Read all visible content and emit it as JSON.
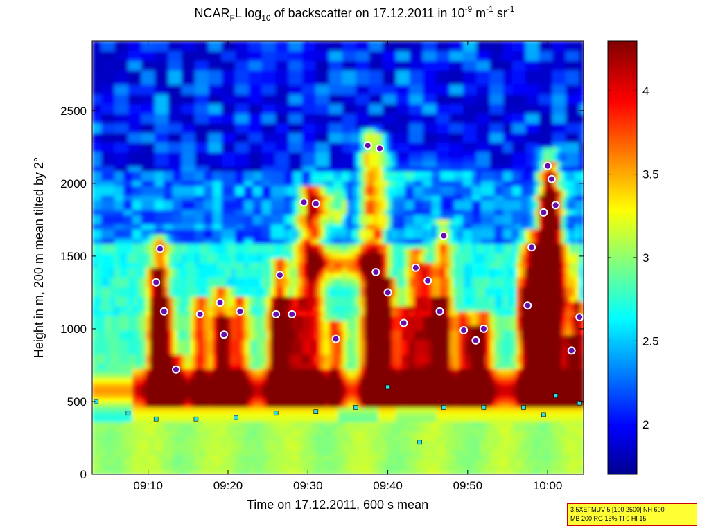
{
  "chart_data": {
    "type": "heatmap",
    "title": {
      "prefix": "NCAR",
      "sub1": "F",
      "mid1": "L log",
      "sub2": "10",
      "mid2": " of backscatter on 17.12.2011 in 10",
      "sup1": "-9",
      "mid3": " m",
      "sup2": "-1",
      "mid4": " sr",
      "sup3": "-1"
    },
    "xlabel": "Time on 17.12.2011, 600 s mean",
    "ylabel": "Height in m, 200 m mean tilted by 2°",
    "x_ticks": [
      "09:10",
      "09:20",
      "09:30",
      "09:40",
      "09:50",
      "10:00"
    ],
    "x_tick_minutes": [
      550,
      560,
      570,
      580,
      590,
      600
    ],
    "xlim_minutes": [
      543,
      604.5
    ],
    "y_ticks": [
      "0",
      "500",
      "1000",
      "1500",
      "2000",
      "2500"
    ],
    "y_tick_values": [
      0,
      500,
      1000,
      1500,
      2000,
      2500
    ],
    "ylim": [
      0,
      2980
    ],
    "colorbar": {
      "range": [
        1.7,
        4.3
      ],
      "ticks": [
        "2",
        "2.5",
        "3",
        "3.5",
        "4"
      ],
      "tick_values": [
        2,
        2.5,
        3,
        3.5,
        4
      ],
      "colormap": "jet"
    },
    "cloud_base_series": [
      {
        "t": 551.5,
        "h": 1550
      },
      {
        "t": 551,
        "h": 1320
      },
      {
        "t": 552,
        "h": 1120
      },
      {
        "t": 553.5,
        "h": 720
      },
      {
        "t": 556.5,
        "h": 1100
      },
      {
        "t": 559,
        "h": 1180
      },
      {
        "t": 559.5,
        "h": 960
      },
      {
        "t": 561.5,
        "h": 1120
      },
      {
        "t": 566,
        "h": 1100
      },
      {
        "t": 566.5,
        "h": 1370
      },
      {
        "t": 568,
        "h": 1100
      },
      {
        "t": 569.5,
        "h": 1870
      },
      {
        "t": 571,
        "h": 1860
      },
      {
        "t": 573.5,
        "h": 930
      },
      {
        "t": 577.5,
        "h": 2260
      },
      {
        "t": 579,
        "h": 2240
      },
      {
        "t": 578.5,
        "h": 1390
      },
      {
        "t": 580,
        "h": 1250
      },
      {
        "t": 582,
        "h": 1040
      },
      {
        "t": 583.5,
        "h": 1420
      },
      {
        "t": 585,
        "h": 1330
      },
      {
        "t": 586.5,
        "h": 1120
      },
      {
        "t": 587,
        "h": 1640
      },
      {
        "t": 589.5,
        "h": 990
      },
      {
        "t": 591,
        "h": 920
      },
      {
        "t": 592,
        "h": 1000
      },
      {
        "t": 597.5,
        "h": 1160
      },
      {
        "t": 598,
        "h": 1560
      },
      {
        "t": 599.5,
        "h": 1800
      },
      {
        "t": 600,
        "h": 2120
      },
      {
        "t": 600.5,
        "h": 2030
      },
      {
        "t": 601,
        "h": 1850
      },
      {
        "t": 603,
        "h": 850
      },
      {
        "t": 604,
        "h": 1080
      }
    ],
    "aerosol_layer_series": [
      {
        "t": 543.5,
        "h": 500
      },
      {
        "t": 547.5,
        "h": 420
      },
      {
        "t": 551,
        "h": 380
      },
      {
        "t": 556,
        "h": 380
      },
      {
        "t": 561,
        "h": 390
      },
      {
        "t": 566,
        "h": 420
      },
      {
        "t": 571,
        "h": 430
      },
      {
        "t": 576,
        "h": 460
      },
      {
        "t": 580,
        "h": 600
      },
      {
        "t": 584,
        "h": 220
      },
      {
        "t": 587,
        "h": 460
      },
      {
        "t": 592,
        "h": 460
      },
      {
        "t": 597,
        "h": 460
      },
      {
        "t": 599.5,
        "h": 410
      },
      {
        "t": 601,
        "h": 540
      },
      {
        "t": 604,
        "h": 490
      }
    ]
  },
  "info_box": {
    "line1": "3.5XEFMUV 5 [100 2500] NH 600",
    "line2": "MB 200 RG 15% TI 0 HI 15"
  }
}
